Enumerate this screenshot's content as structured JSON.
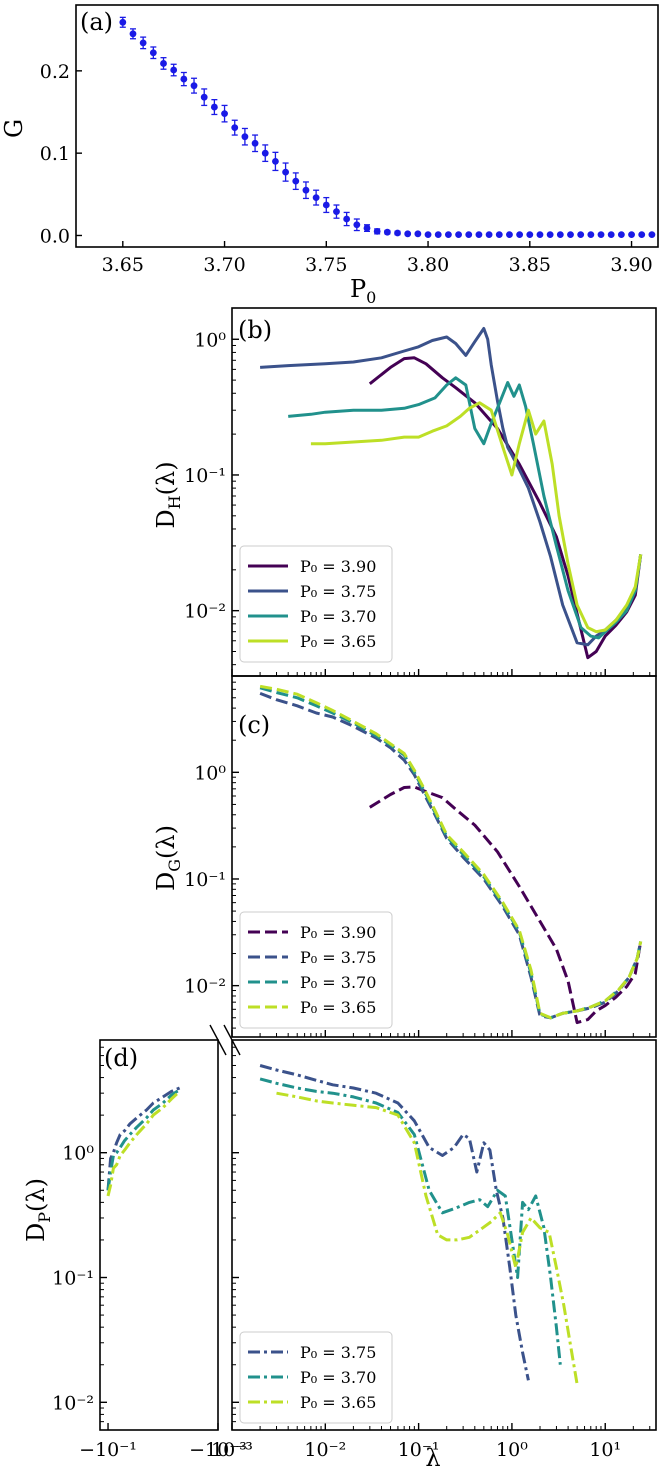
{
  "chart_data": [
    {
      "id": "a",
      "type": "scatter",
      "panel_label": "(a)",
      "xlabel": "P",
      "xlabel_sub": "0",
      "ylabel": "G",
      "xlim": [
        3.627,
        3.913
      ],
      "ylim": [
        -0.014,
        0.28
      ],
      "xticks": [
        "3.65",
        "3.70",
        "3.75",
        "3.80",
        "3.85",
        "3.90"
      ],
      "yticks": [
        "0.0",
        "0.1",
        "0.2"
      ],
      "color": "#1a1ae6",
      "x": [
        3.65,
        3.655,
        3.66,
        3.665,
        3.67,
        3.675,
        3.68,
        3.685,
        3.69,
        3.695,
        3.7,
        3.705,
        3.71,
        3.715,
        3.72,
        3.725,
        3.73,
        3.735,
        3.74,
        3.745,
        3.75,
        3.755,
        3.76,
        3.765,
        3.77,
        3.775,
        3.78,
        3.785,
        3.79,
        3.795,
        3.8,
        3.805,
        3.81,
        3.815,
        3.82,
        3.825,
        3.83,
        3.835,
        3.84,
        3.845,
        3.85,
        3.855,
        3.86,
        3.865,
        3.87,
        3.875,
        3.88,
        3.885,
        3.89,
        3.895,
        3.9,
        3.905,
        3.91
      ],
      "y": [
        0.259,
        0.245,
        0.234,
        0.222,
        0.209,
        0.201,
        0.19,
        0.182,
        0.168,
        0.156,
        0.148,
        0.131,
        0.12,
        0.112,
        0.1,
        0.09,
        0.077,
        0.066,
        0.055,
        0.046,
        0.037,
        0.029,
        0.02,
        0.013,
        0.009,
        0.005,
        0.004,
        0.003,
        0.002,
        0.002,
        0.001,
        0.001,
        0.001,
        0.001,
        0.001,
        0.001,
        0.001,
        0.001,
        0.001,
        0.001,
        0.001,
        0.001,
        0.001,
        0.001,
        0.001,
        0.001,
        0.001,
        0.001,
        0.001,
        0.001,
        0.001,
        0.001,
        0.001
      ],
      "yerr": [
        0.006,
        0.006,
        0.007,
        0.007,
        0.007,
        0.007,
        0.008,
        0.009,
        0.01,
        0.009,
        0.01,
        0.009,
        0.01,
        0.01,
        0.01,
        0.011,
        0.011,
        0.01,
        0.01,
        0.009,
        0.009,
        0.008,
        0.008,
        0.007,
        0.004,
        0.003,
        0.002,
        0.002,
        0.001,
        0.001,
        0,
        0,
        0,
        0,
        0,
        0,
        0,
        0,
        0,
        0,
        0,
        0,
        0,
        0,
        0,
        0,
        0,
        0,
        0,
        0,
        0,
        0,
        0
      ]
    },
    {
      "id": "b",
      "type": "line",
      "panel_label": "(b)",
      "ylabel": "D",
      "ylabel_sub": "H",
      "ylabel_tail": "(λ)",
      "xscale": "log",
      "yscale": "log",
      "xlim": [
        0.001,
        35
      ],
      "ylim": [
        0.0033,
        1.7
      ],
      "yticks": [
        "10⁻²",
        "10⁻¹",
        "10⁰"
      ],
      "legend": "lower-left",
      "dash": "solid",
      "series": [
        {
          "name": "P₀ = 3.90",
          "color": "#440154",
          "x": [
            0.03,
            0.05,
            0.07,
            0.09,
            0.12,
            0.18,
            0.25,
            0.4,
            0.7,
            1.2,
            2.0,
            3.0,
            4.0,
            5.0,
            6.5,
            8.0,
            10,
            13,
            17,
            21,
            24
          ],
          "y": [
            0.47,
            0.62,
            0.72,
            0.73,
            0.66,
            0.52,
            0.44,
            0.34,
            0.22,
            0.12,
            0.062,
            0.035,
            0.018,
            0.0095,
            0.0045,
            0.005,
            0.0065,
            0.0078,
            0.0098,
            0.013,
            0.026
          ]
        },
        {
          "name": "P₀ = 3.75",
          "color": "#3b528b",
          "x": [
            0.002,
            0.004,
            0.01,
            0.02,
            0.04,
            0.07,
            0.1,
            0.14,
            0.2,
            0.25,
            0.32,
            0.4,
            0.5,
            0.55,
            0.6,
            0.7,
            0.8,
            0.9,
            1.0,
            1.2,
            1.5,
            2.0,
            2.6,
            3.5,
            5.0,
            6.5,
            8.0,
            10,
            13,
            17,
            21,
            24
          ],
          "y": [
            0.62,
            0.64,
            0.66,
            0.68,
            0.73,
            0.82,
            0.88,
            0.98,
            1.04,
            0.93,
            0.76,
            0.96,
            1.2,
            1.0,
            0.65,
            0.35,
            0.22,
            0.16,
            0.14,
            0.11,
            0.08,
            0.045,
            0.025,
            0.011,
            0.0058,
            0.0056,
            0.0065,
            0.0072,
            0.0085,
            0.0105,
            0.014,
            0.026
          ]
        },
        {
          "name": "P₀ = 3.70",
          "color": "#21918c",
          "x": [
            0.004,
            0.007,
            0.01,
            0.02,
            0.04,
            0.07,
            0.1,
            0.15,
            0.2,
            0.25,
            0.32,
            0.4,
            0.5,
            0.6,
            0.75,
            0.9,
            1.05,
            1.2,
            1.4,
            1.7,
            2.2,
            3.0,
            4.0,
            5.5,
            7.0,
            8.5,
            10,
            13,
            17,
            21,
            24
          ],
          "y": [
            0.27,
            0.28,
            0.29,
            0.3,
            0.3,
            0.31,
            0.33,
            0.37,
            0.46,
            0.52,
            0.46,
            0.22,
            0.17,
            0.24,
            0.35,
            0.48,
            0.38,
            0.46,
            0.32,
            0.17,
            0.07,
            0.03,
            0.014,
            0.0075,
            0.0065,
            0.0063,
            0.007,
            0.0082,
            0.01,
            0.014,
            0.026
          ]
        },
        {
          "name": "P₀ = 3.65",
          "color": "#bddf26",
          "x": [
            0.007,
            0.01,
            0.02,
            0.04,
            0.07,
            0.1,
            0.14,
            0.2,
            0.28,
            0.35,
            0.45,
            0.6,
            0.8,
            1.0,
            1.2,
            1.5,
            1.8,
            2.2,
            2.7,
            3.2,
            4.0,
            5.0,
            6.5,
            8.0,
            10,
            13,
            17,
            21,
            24
          ],
          "y": [
            0.17,
            0.17,
            0.175,
            0.18,
            0.19,
            0.19,
            0.21,
            0.23,
            0.27,
            0.31,
            0.34,
            0.3,
            0.16,
            0.1,
            0.17,
            0.3,
            0.2,
            0.25,
            0.12,
            0.05,
            0.022,
            0.011,
            0.0075,
            0.007,
            0.0072,
            0.0085,
            0.011,
            0.015,
            0.026
          ]
        }
      ]
    },
    {
      "id": "c",
      "type": "line",
      "panel_label": "(c)",
      "ylabel": "D",
      "ylabel_sub": "G",
      "ylabel_tail": "(λ)",
      "xscale": "log",
      "yscale": "log",
      "xlim": [
        0.001,
        35
      ],
      "ylim": [
        0.0033,
        8
      ],
      "yticks": [
        "10⁻²",
        "10⁻¹",
        "10⁰"
      ],
      "legend": "lower-left",
      "dash": "dashed",
      "series": [
        {
          "name": "P₀ = 3.90",
          "color": "#440154",
          "x": [
            0.03,
            0.05,
            0.07,
            0.09,
            0.12,
            0.18,
            0.25,
            0.4,
            0.7,
            1.2,
            2.0,
            3.0,
            4.0,
            5.0,
            6.5,
            8.0,
            10,
            13,
            17,
            21,
            24
          ],
          "y": [
            0.47,
            0.62,
            0.72,
            0.73,
            0.66,
            0.58,
            0.45,
            0.32,
            0.18,
            0.085,
            0.04,
            0.022,
            0.011,
            0.0045,
            0.0048,
            0.0058,
            0.0065,
            0.0078,
            0.0098,
            0.013,
            0.026
          ]
        },
        {
          "name": "P₀ = 3.75",
          "color": "#3b528b",
          "x": [
            0.002,
            0.003,
            0.005,
            0.008,
            0.012,
            0.02,
            0.035,
            0.05,
            0.07,
            0.09,
            0.12,
            0.15,
            0.2,
            0.3,
            0.5,
            0.8,
            1.2,
            1.6,
            2.0,
            2.6,
            3.5,
            5.0,
            7.0,
            10,
            14,
            18,
            22,
            24
          ],
          "y": [
            5.5,
            4.8,
            4.2,
            3.6,
            3.3,
            2.7,
            2.1,
            1.7,
            1.3,
            0.95,
            0.58,
            0.4,
            0.24,
            0.16,
            0.1,
            0.055,
            0.03,
            0.012,
            0.0052,
            0.005,
            0.0055,
            0.0058,
            0.0062,
            0.007,
            0.009,
            0.012,
            0.018,
            0.026
          ]
        },
        {
          "name": "P₀ = 3.70",
          "color": "#21918c",
          "x": [
            0.002,
            0.003,
            0.005,
            0.008,
            0.012,
            0.02,
            0.035,
            0.05,
            0.07,
            0.09,
            0.12,
            0.15,
            0.2,
            0.3,
            0.5,
            0.8,
            1.2,
            1.6,
            2.0,
            2.6,
            3.5,
            5.0,
            7.0,
            10,
            14,
            18,
            22,
            24
          ],
          "y": [
            6.2,
            5.6,
            5.0,
            4.2,
            3.6,
            2.9,
            2.2,
            1.8,
            1.45,
            1.0,
            0.62,
            0.42,
            0.25,
            0.17,
            0.105,
            0.058,
            0.032,
            0.013,
            0.0054,
            0.005,
            0.0055,
            0.0058,
            0.0063,
            0.0072,
            0.0092,
            0.012,
            0.018,
            0.026
          ]
        },
        {
          "name": "P₀ = 3.65",
          "color": "#bddf26",
          "x": [
            0.002,
            0.003,
            0.005,
            0.008,
            0.012,
            0.02,
            0.035,
            0.05,
            0.07,
            0.09,
            0.12,
            0.15,
            0.2,
            0.3,
            0.5,
            0.8,
            1.2,
            1.6,
            2.0,
            2.6,
            3.5,
            5.0,
            7.0,
            10,
            14,
            18,
            22,
            24
          ],
          "y": [
            6.4,
            6.0,
            5.4,
            4.5,
            3.8,
            3.0,
            2.3,
            1.85,
            1.5,
            1.05,
            0.65,
            0.44,
            0.26,
            0.18,
            0.11,
            0.06,
            0.033,
            0.014,
            0.0055,
            0.005,
            0.0055,
            0.0058,
            0.0063,
            0.0072,
            0.0092,
            0.012,
            0.018,
            0.026
          ]
        }
      ]
    },
    {
      "id": "d",
      "type": "line",
      "panel_label": "(d)",
      "ylabel": "D",
      "ylabel_sub": "P",
      "ylabel_tail": "(λ)",
      "xlabel": "λ",
      "xscale": "log",
      "yscale": "log",
      "ylim": [
        0.006,
        8
      ],
      "yticks": [
        "10⁻²",
        "10⁻¹",
        "10⁰"
      ],
      "left_xlim": [
        -0.14,
        -0.001
      ],
      "left_xticks": [
        "−10⁻¹",
        "−10⁻³"
      ],
      "right_xlim": [
        0.001,
        35
      ],
      "xticks": [
        "10⁻³",
        "10⁻²",
        "10⁻¹",
        "10⁰",
        "10¹"
      ],
      "legend": "lower-left",
      "dash": "dashdot",
      "series": [
        {
          "name": "P₀ = 3.75",
          "color": "#3b528b",
          "neg_x": [
            -0.1,
            -0.09,
            -0.08,
            -0.07,
            -0.06,
            -0.05,
            -0.04,
            -0.03,
            -0.02,
            -0.015,
            -0.01,
            -0.007,
            -0.005
          ],
          "neg_y": [
            0.5,
            0.9,
            1.0,
            1.2,
            1.4,
            1.5,
            1.7,
            1.9,
            2.2,
            2.5,
            2.8,
            3.1,
            3.3
          ],
          "x": [
            0.002,
            0.003,
            0.005,
            0.008,
            0.012,
            0.02,
            0.035,
            0.06,
            0.09,
            0.13,
            0.18,
            0.24,
            0.3,
            0.35,
            0.42,
            0.5,
            0.58,
            0.68,
            0.8,
            0.95,
            1.1,
            1.3,
            1.5
          ],
          "y": [
            5.0,
            4.6,
            4.2,
            3.8,
            3.5,
            3.3,
            3.0,
            2.5,
            1.8,
            1.1,
            0.95,
            1.1,
            1.4,
            1.3,
            0.7,
            1.2,
            1.05,
            0.5,
            0.3,
            0.12,
            0.05,
            0.025,
            0.015
          ]
        },
        {
          "name": "P₀ = 3.70",
          "color": "#21918c",
          "neg_x": [
            -0.1,
            -0.09,
            -0.08,
            -0.07,
            -0.06,
            -0.05,
            -0.04,
            -0.03,
            -0.02,
            -0.015,
            -0.01,
            -0.007,
            -0.005
          ],
          "neg_y": [
            0.5,
            0.7,
            0.95,
            1.0,
            1.1,
            1.25,
            1.4,
            1.6,
            1.9,
            2.2,
            2.5,
            2.9,
            3.2
          ],
          "x": [
            0.002,
            0.003,
            0.005,
            0.008,
            0.012,
            0.02,
            0.035,
            0.06,
            0.09,
            0.13,
            0.18,
            0.25,
            0.35,
            0.45,
            0.55,
            0.7,
            0.85,
            1.0,
            1.15,
            1.3,
            1.5,
            1.8,
            2.2,
            2.6,
            3.0,
            3.3
          ],
          "y": [
            3.9,
            3.6,
            3.3,
            3.1,
            3.0,
            2.8,
            2.5,
            2.1,
            1.4,
            0.5,
            0.33,
            0.36,
            0.4,
            0.42,
            0.37,
            0.5,
            0.45,
            0.2,
            0.1,
            0.4,
            0.35,
            0.45,
            0.25,
            0.1,
            0.04,
            0.02
          ]
        },
        {
          "name": "P₀ = 3.65",
          "color": "#bddf26",
          "neg_x": [
            -0.1,
            -0.09,
            -0.08,
            -0.07,
            -0.06,
            -0.05,
            -0.04,
            -0.03,
            -0.02,
            -0.015,
            -0.01,
            -0.007,
            -0.005
          ],
          "neg_y": [
            0.45,
            0.55,
            0.75,
            0.8,
            0.95,
            1.05,
            1.2,
            1.4,
            1.7,
            2.0,
            2.3,
            2.7,
            3.1
          ],
          "x": [
            0.003,
            0.005,
            0.008,
            0.012,
            0.02,
            0.035,
            0.06,
            0.09,
            0.12,
            0.16,
            0.2,
            0.26,
            0.35,
            0.45,
            0.6,
            0.75,
            0.9,
            1.1,
            1.3,
            1.6,
            2.0,
            2.5,
            3.0,
            3.6,
            4.2,
            5.0
          ],
          "y": [
            3.0,
            2.8,
            2.6,
            2.5,
            2.4,
            2.3,
            2.0,
            1.2,
            0.45,
            0.22,
            0.2,
            0.2,
            0.21,
            0.24,
            0.28,
            0.33,
            0.22,
            0.12,
            0.23,
            0.3,
            0.25,
            0.23,
            0.12,
            0.06,
            0.03,
            0.014
          ]
        }
      ]
    }
  ]
}
